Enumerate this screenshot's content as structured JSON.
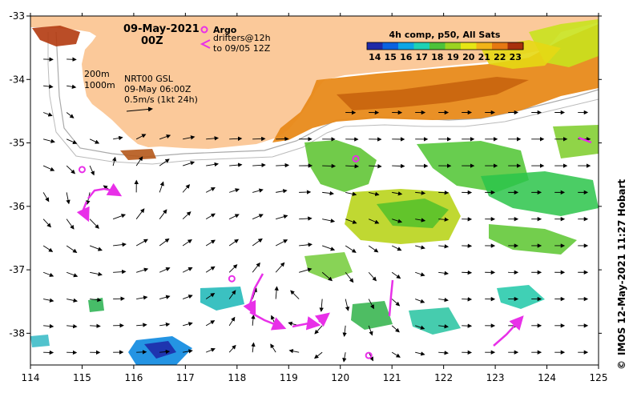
{
  "map": {
    "date": "09-May-2021",
    "hour": "00Z",
    "composite": "4h comp, p50, All Sats",
    "colorbar_ticks": [
      "14",
      "15",
      "16",
      "17",
      "18",
      "19",
      "20",
      "21",
      "22",
      "23"
    ],
    "colorbar_colors": [
      "#1e2aa8",
      "#0a62e0",
      "#0ca6e6",
      "#1ed2b4",
      "#4cc23a",
      "#9bd320",
      "#e6e614",
      "#f2b418",
      "#e67812",
      "#a8300c"
    ],
    "argo_label": "Argo",
    "drifters_label": "drifters@12h",
    "drifters_period": "to 09/05 12Z",
    "isobath_200": "200m",
    "isobath_1000": "1000m",
    "altimetry_product": "NRT00 GSL",
    "altimetry_time": "09-May 06:00Z",
    "vector_scale": "0.5m/s (1kt 24h)",
    "credit": "IMOS 12-May-2021 11:27 Hobart",
    "copyright_symbol": "©",
    "x_ticks": [
      "114",
      "115",
      "116",
      "117",
      "118",
      "119",
      "120",
      "121",
      "122",
      "123",
      "124",
      "125"
    ],
    "y_ticks": [
      "-33",
      "-34",
      "-35",
      "-36",
      "-37",
      "-38"
    ],
    "x_tick_values": [
      114,
      115,
      116,
      117,
      118,
      119,
      120,
      121,
      122,
      123,
      124,
      125
    ],
    "y_tick_values": [
      -33,
      -34,
      -35,
      -36,
      -37,
      -38
    ],
    "lon_range": [
      114,
      125
    ],
    "lat_range": [
      -38.5,
      -33
    ],
    "land_color": "#fbc99a",
    "argo_color": "#e830e8",
    "argo_floats": [
      {
        "lon": 115.0,
        "lat": -35.42
      },
      {
        "lon": 117.9,
        "lat": -37.14
      },
      {
        "lon": 120.3,
        "lat": -35.25
      },
      {
        "lon": 120.55,
        "lat": -38.35
      }
    ]
  }
}
